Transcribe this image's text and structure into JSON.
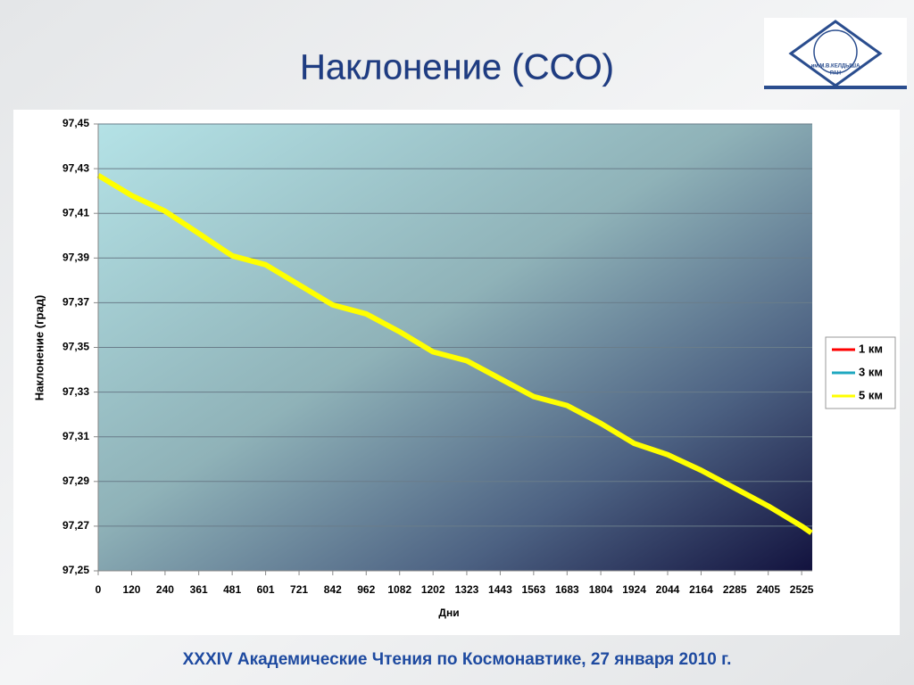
{
  "logo": {
    "lines": [
      "им.М.В.КЕЛДЫША",
      "РАН"
    ]
  },
  "footer": "XXXIV  Академические Чтения по Космонавтике,  27 января 2010 г.",
  "chart_data": {
    "type": "line",
    "title": "Наклонение  (ССО)",
    "x_label": "Дни",
    "y_label": "Наклонение  (град)",
    "x": [
      0,
      120,
      240,
      361,
      481,
      601,
      721,
      842,
      962,
      1082,
      1202,
      1323,
      1443,
      1563,
      1683,
      1804,
      1924,
      2044,
      2164,
      2285,
      2405,
      2525,
      2560
    ],
    "series": [
      {
        "name": "1 км",
        "color": "#ff0000",
        "values": [
          97.427,
          97.418,
          97.411,
          97.401,
          97.391,
          97.387,
          97.378,
          97.369,
          97.365,
          97.357,
          97.348,
          97.344,
          97.336,
          97.328,
          97.324,
          97.316,
          97.307,
          97.302,
          97.295,
          97.287,
          97.279,
          97.27,
          97.267
        ]
      },
      {
        "name": "3 км",
        "color": "#1fa8c0",
        "values": [
          97.427,
          97.418,
          97.411,
          97.401,
          97.391,
          97.387,
          97.378,
          97.369,
          97.365,
          97.357,
          97.348,
          97.344,
          97.336,
          97.328,
          97.324,
          97.316,
          97.307,
          97.302,
          97.295,
          97.287,
          97.279,
          97.27,
          97.267
        ]
      },
      {
        "name": "5 км",
        "color": "#ffff00",
        "values": [
          97.427,
          97.418,
          97.411,
          97.401,
          97.391,
          97.387,
          97.378,
          97.369,
          97.365,
          97.357,
          97.348,
          97.344,
          97.336,
          97.328,
          97.324,
          97.316,
          97.307,
          97.302,
          97.295,
          97.287,
          97.279,
          97.27,
          97.267
        ]
      }
    ],
    "xlim": [
      0,
      2563
    ],
    "xticks": [
      0,
      120,
      240,
      361,
      481,
      601,
      721,
      842,
      962,
      1082,
      1202,
      1323,
      1443,
      1563,
      1683,
      1804,
      1924,
      2044,
      2164,
      2285,
      2405,
      2525
    ],
    "ylim": [
      97.25,
      97.45
    ],
    "yticks": [
      {
        "value": 97.25,
        "label": "97,25"
      },
      {
        "value": 97.27,
        "label": "97,27"
      },
      {
        "value": 97.29,
        "label": "97,29"
      },
      {
        "value": 97.31,
        "label": "97,31"
      },
      {
        "value": 97.33,
        "label": "97,33"
      },
      {
        "value": 97.35,
        "label": "97,35"
      },
      {
        "value": 97.37,
        "label": "97,37"
      },
      {
        "value": 97.39,
        "label": "97,39"
      },
      {
        "value": 97.41,
        "label": "97,41"
      },
      {
        "value": 97.43,
        "label": "97,43"
      },
      {
        "value": 97.45,
        "label": "97,45"
      }
    ],
    "grid": true,
    "legend": "right"
  }
}
